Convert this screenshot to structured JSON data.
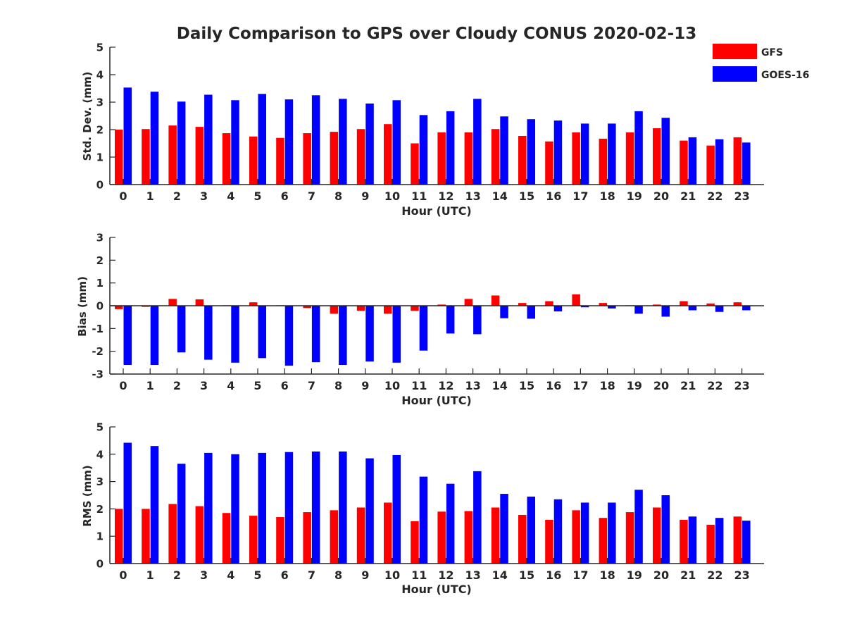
{
  "title": "Daily Comparison to GPS over Cloudy CONUS 2020-02-13",
  "legend": {
    "items": [
      {
        "label": "GFS",
        "color": "#ff0000"
      },
      {
        "label": "GOES-16",
        "color": "#0000ff"
      }
    ]
  },
  "colors": {
    "gfs": "#ff0000",
    "goes": "#0000ff",
    "axis": "#262626"
  },
  "chart_data": [
    {
      "type": "bar",
      "ylabel": "Std. Dev. (mm)",
      "xlabel": "Hour (UTC)",
      "ylim": [
        0,
        5
      ],
      "yticks": [
        0,
        1,
        2,
        3,
        4,
        5
      ],
      "grid": false,
      "categories": [
        "0",
        "1",
        "2",
        "3",
        "4",
        "5",
        "6",
        "7",
        "8",
        "9",
        "10",
        "11",
        "12",
        "13",
        "14",
        "15",
        "16",
        "17",
        "18",
        "19",
        "20",
        "21",
        "22",
        "23"
      ],
      "series": [
        {
          "name": "GFS",
          "values": [
            2.0,
            2.02,
            2.15,
            2.1,
            1.87,
            1.75,
            1.7,
            1.87,
            1.92,
            2.02,
            2.2,
            1.5,
            1.9,
            1.9,
            2.02,
            1.77,
            1.57,
            1.9,
            1.67,
            1.9,
            2.05,
            1.6,
            1.42,
            1.72
          ]
        },
        {
          "name": "GOES-16",
          "values": [
            3.53,
            3.38,
            3.02,
            3.27,
            3.07,
            3.3,
            3.1,
            3.25,
            3.12,
            2.95,
            3.07,
            2.53,
            2.67,
            3.12,
            2.48,
            2.38,
            2.33,
            2.22,
            2.22,
            2.67,
            2.43,
            1.72,
            1.65,
            1.53
          ]
        }
      ]
    },
    {
      "type": "bar",
      "ylabel": "Bias (mm)",
      "xlabel": "Hour (UTC)",
      "ylim": [
        -3,
        3
      ],
      "yticks": [
        -3,
        -2,
        -1,
        0,
        1,
        2,
        3
      ],
      "grid": false,
      "categories": [
        "0",
        "1",
        "2",
        "3",
        "4",
        "5",
        "6",
        "7",
        "8",
        "9",
        "10",
        "11",
        "12",
        "13",
        "14",
        "15",
        "16",
        "17",
        "18",
        "19",
        "20",
        "21",
        "22",
        "23"
      ],
      "series": [
        {
          "name": "GFS",
          "values": [
            -0.15,
            -0.05,
            0.3,
            0.28,
            0.02,
            0.15,
            0.02,
            -0.1,
            -0.35,
            -0.22,
            -0.35,
            -0.22,
            0.05,
            0.3,
            0.45,
            0.12,
            0.2,
            0.5,
            0.12,
            0.02,
            0.05,
            0.2,
            0.1,
            0.15
          ]
        },
        {
          "name": "GOES-16",
          "values": [
            -2.6,
            -2.6,
            -2.05,
            -2.37,
            -2.5,
            -2.3,
            -2.63,
            -2.48,
            -2.6,
            -2.45,
            -2.5,
            -1.97,
            -1.22,
            -1.25,
            -0.55,
            -0.57,
            -0.25,
            -0.07,
            -0.12,
            -0.35,
            -0.48,
            -0.2,
            -0.27,
            -0.2
          ]
        }
      ]
    },
    {
      "type": "bar",
      "ylabel": "RMS (mm)",
      "xlabel": "Hour (UTC)",
      "ylim": [
        0,
        5
      ],
      "yticks": [
        0,
        1,
        2,
        3,
        4,
        5
      ],
      "grid": false,
      "categories": [
        "0",
        "1",
        "2",
        "3",
        "4",
        "5",
        "6",
        "7",
        "8",
        "9",
        "10",
        "11",
        "12",
        "13",
        "14",
        "15",
        "16",
        "17",
        "18",
        "19",
        "20",
        "21",
        "22",
        "23"
      ],
      "series": [
        {
          "name": "GFS",
          "values": [
            2.0,
            2.0,
            2.18,
            2.1,
            1.85,
            1.75,
            1.7,
            1.88,
            1.95,
            2.05,
            2.23,
            1.55,
            1.9,
            1.92,
            2.05,
            1.78,
            1.6,
            1.95,
            1.67,
            1.88,
            2.05,
            1.6,
            1.42,
            1.72
          ]
        },
        {
          "name": "GOES-16",
          "values": [
            4.42,
            4.3,
            3.65,
            4.05,
            4.0,
            4.05,
            4.08,
            4.1,
            4.1,
            3.85,
            3.97,
            3.18,
            2.92,
            3.38,
            2.55,
            2.45,
            2.35,
            2.23,
            2.23,
            2.7,
            2.5,
            1.72,
            1.67,
            1.57
          ]
        }
      ]
    }
  ]
}
